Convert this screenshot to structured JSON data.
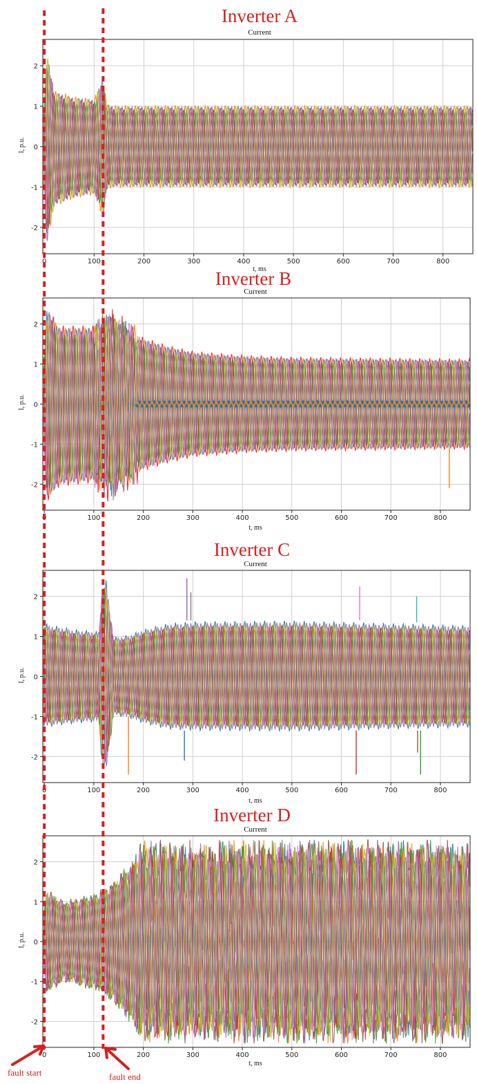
{
  "chart_data": [
    {
      "type": "line",
      "title": "Inverter A",
      "subtitle": "Current",
      "xlabel": "t, ms",
      "ylabel": "I, p.u.",
      "xlim": [
        -3,
        860
      ],
      "ylim": [
        -2.65,
        2.65
      ],
      "xticks": [
        0,
        100,
        200,
        300,
        400,
        500,
        600,
        700,
        800
      ],
      "yticks": [
        -2,
        -1,
        0,
        1,
        2
      ],
      "grid": true,
      "envelope": {
        "x": [
          0,
          5,
          20,
          60,
          100,
          118,
          125,
          130,
          140,
          200,
          860
        ],
        "upper": [
          1.0,
          2.4,
          1.4,
          1.25,
          1.2,
          1.75,
          1.1,
          1.05,
          1.02,
          1.02,
          1.02
        ],
        "lower": [
          -1.0,
          -2.5,
          -1.5,
          -1.3,
          -1.2,
          -1.8,
          -1.1,
          -1.05,
          -1.02,
          -1.02,
          -1.02
        ]
      },
      "middle_band": null,
      "spikes": []
    },
    {
      "type": "line",
      "title": "Inverter B",
      "subtitle": "Current",
      "xlabel": "t, ms",
      "ylabel": "I, p.u.",
      "xlim": [
        -3,
        860
      ],
      "ylim": [
        -2.65,
        2.65
      ],
      "xticks": [
        0,
        100,
        200,
        300,
        400,
        500,
        600,
        700,
        800
      ],
      "yticks": [
        -2,
        -1,
        0,
        1,
        2
      ],
      "grid": true,
      "envelope": {
        "x": [
          0,
          5,
          30,
          100,
          118,
          140,
          170,
          200,
          250,
          300,
          400,
          500,
          860
        ],
        "upper": [
          1.2,
          2.5,
          2.0,
          2.0,
          2.2,
          2.3,
          2.0,
          1.7,
          1.5,
          1.35,
          1.25,
          1.2,
          1.15
        ],
        "lower": [
          -1.2,
          -2.5,
          -2.1,
          -2.0,
          -2.2,
          -2.3,
          -2.0,
          -1.7,
          -1.5,
          -1.35,
          -1.25,
          -1.2,
          -1.15
        ]
      },
      "middle_band": {
        "x_start": 185,
        "x_end": 860,
        "y": 0,
        "half_width": 0.06
      },
      "spikes": [
        {
          "x": 818,
          "y_start": -1.1,
          "y_end": -2.1
        }
      ]
    },
    {
      "type": "line",
      "title": "Inverter C",
      "subtitle": "Current",
      "xlabel": "t, ms",
      "ylabel": "I, p.u.",
      "xlim": [
        -3,
        860
      ],
      "ylim": [
        -2.65,
        2.65
      ],
      "xticks": [
        0,
        100,
        200,
        300,
        400,
        500,
        600,
        700,
        800
      ],
      "yticks": [
        -2,
        -1,
        0,
        1,
        2
      ],
      "grid": true,
      "envelope": {
        "x": [
          0,
          60,
          110,
          118,
          125,
          140,
          170,
          200,
          250,
          300,
          500,
          860
        ],
        "upper": [
          1.35,
          1.2,
          1.15,
          2.45,
          2.45,
          1.0,
          1.05,
          1.2,
          1.35,
          1.4,
          1.42,
          1.3
        ],
        "lower": [
          -1.3,
          -1.2,
          -1.15,
          -2.45,
          -2.45,
          -1.0,
          -1.05,
          -1.2,
          -1.35,
          -1.38,
          -1.4,
          -1.3
        ]
      },
      "middle_band": null,
      "spikes": [
        {
          "x": 170,
          "y_start": -1.0,
          "y_end": -2.45
        },
        {
          "x": 288,
          "y_start": 1.4,
          "y_end": 2.45
        },
        {
          "x": 296,
          "y_start": 1.4,
          "y_end": 2.1
        },
        {
          "x": 283,
          "y_start": -1.35,
          "y_end": -2.1
        },
        {
          "x": 630,
          "y_start": -1.35,
          "y_end": -2.45
        },
        {
          "x": 637,
          "y_start": 1.4,
          "y_end": 2.25
        },
        {
          "x": 752,
          "y_start": 1.35,
          "y_end": 2.0
        },
        {
          "x": 760,
          "y_start": -1.35,
          "y_end": -2.45
        },
        {
          "x": 754,
          "y_start": -1.35,
          "y_end": -1.9
        }
      ]
    },
    {
      "type": "line",
      "title": "Inverter D",
      "subtitle": "Current",
      "xlabel": "t, ms",
      "ylabel": "I, p.u.",
      "xlim": [
        -3,
        860
      ],
      "ylim": [
        -2.65,
        2.65
      ],
      "xticks": [
        0,
        100,
        200,
        300,
        400,
        500,
        600,
        700,
        800
      ],
      "yticks": [
        -2,
        -1,
        0,
        1,
        2
      ],
      "grid": true,
      "envelope": {
        "x": [
          0,
          5,
          40,
          100,
          120,
          150,
          200,
          300,
          500,
          700,
          860
        ],
        "upper": [
          0.8,
          1.3,
          1.0,
          1.2,
          1.3,
          1.6,
          2.4,
          2.3,
          2.4,
          2.4,
          2.3
        ],
        "lower": [
          -0.8,
          -1.3,
          -1.0,
          -1.2,
          -1.3,
          -1.7,
          -2.4,
          -2.3,
          -2.4,
          -2.4,
          -2.3
        ]
      },
      "middle_band": null,
      "spikes": []
    }
  ],
  "markers": {
    "fault_start_t": 0,
    "fault_end_t": 118
  },
  "annotations": {
    "fault_start": "fault start",
    "fault_end": "fault end"
  },
  "colors": {
    "annotation": "#d62020",
    "grid": "#cfcfcf",
    "palette": [
      "#1f77b4",
      "#ff7f0e",
      "#2ca02c",
      "#d62728",
      "#9467bd",
      "#8c564b",
      "#e377c2",
      "#7f7f7f",
      "#bcbd22",
      "#17becf"
    ]
  }
}
